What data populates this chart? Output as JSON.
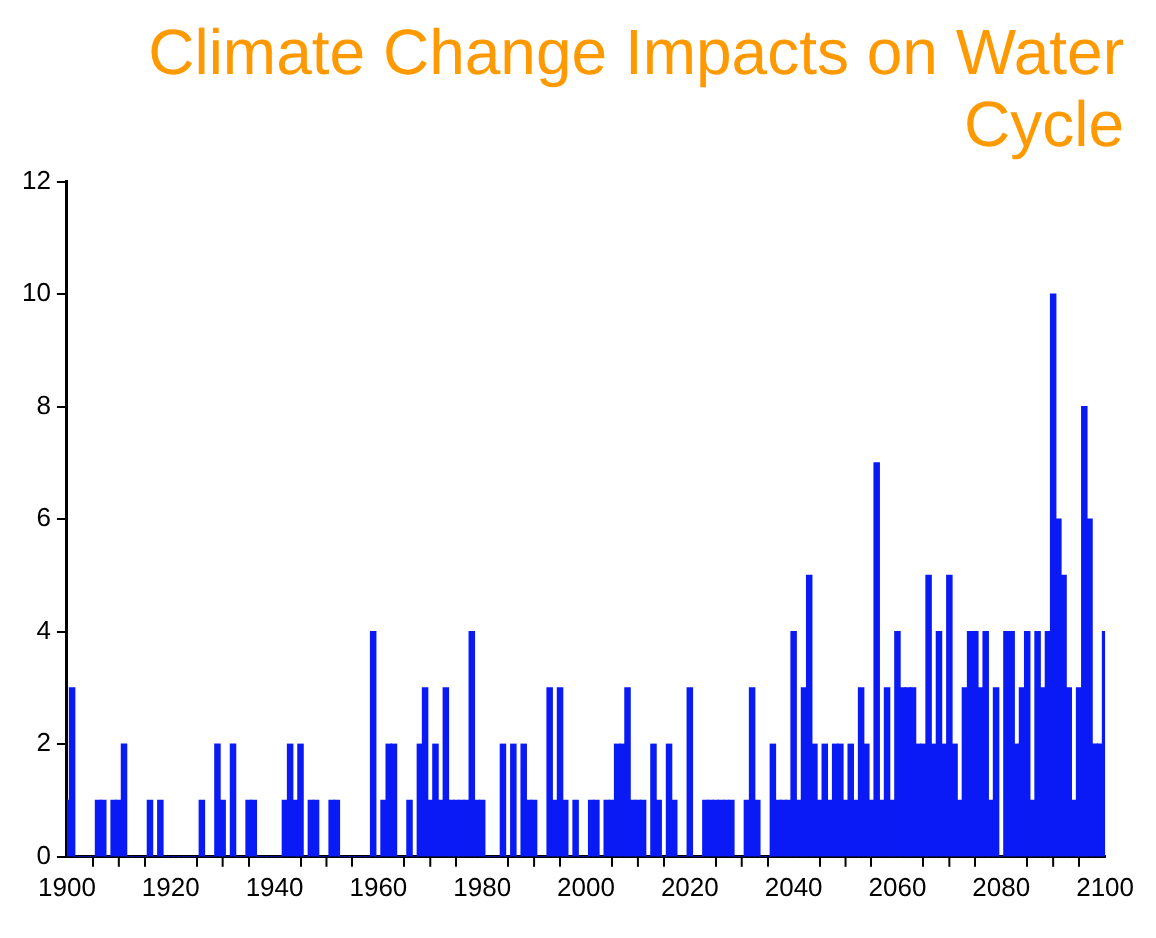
{
  "chart_data": {
    "type": "bar",
    "title": "Climate Change Impacts on Water Cycle",
    "x": [
      1900,
      1901,
      1902,
      1903,
      1904,
      1905,
      1906,
      1907,
      1908,
      1909,
      1910,
      1911,
      1912,
      1913,
      1914,
      1915,
      1916,
      1917,
      1918,
      1919,
      1920,
      1921,
      1922,
      1923,
      1924,
      1925,
      1926,
      1927,
      1928,
      1929,
      1930,
      1931,
      1932,
      1933,
      1934,
      1935,
      1936,
      1937,
      1938,
      1939,
      1940,
      1941,
      1942,
      1943,
      1944,
      1945,
      1946,
      1947,
      1948,
      1949,
      1950,
      1951,
      1952,
      1953,
      1954,
      1955,
      1956,
      1957,
      1958,
      1959,
      1960,
      1961,
      1962,
      1963,
      1964,
      1965,
      1966,
      1967,
      1968,
      1969,
      1970,
      1971,
      1972,
      1973,
      1974,
      1975,
      1976,
      1977,
      1978,
      1979,
      1980,
      1981,
      1982,
      1983,
      1984,
      1985,
      1986,
      1987,
      1988,
      1989,
      1990,
      1991,
      1992,
      1993,
      1994,
      1995,
      1996,
      1997,
      1998,
      1999,
      2000,
      2001,
      2002,
      2003,
      2004,
      2005,
      2006,
      2007,
      2008,
      2009,
      2010,
      2011,
      2012,
      2013,
      2014,
      2015,
      2016,
      2017,
      2018,
      2019,
      2020,
      2021,
      2022,
      2023,
      2024,
      2025,
      2026,
      2027,
      2028,
      2029,
      2030,
      2031,
      2032,
      2033,
      2034,
      2035,
      2036,
      2037,
      2038,
      2039,
      2040,
      2041,
      2042,
      2043,
      2044,
      2045,
      2046,
      2047,
      2048,
      2049,
      2050,
      2051,
      2052,
      2053,
      2054,
      2055,
      2056,
      2057,
      2058,
      2059,
      2060,
      2061,
      2062,
      2063,
      2064,
      2065,
      2066,
      2067,
      2068,
      2069,
      2070,
      2071,
      2072,
      2073,
      2074,
      2075,
      2076,
      2077,
      2078,
      2079,
      2080,
      2081,
      2082,
      2083,
      2084,
      2085,
      2086,
      2087,
      2088,
      2089,
      2090,
      2091,
      2092,
      2093,
      2094,
      2095,
      2096,
      2097,
      2098,
      2099,
      2100
    ],
    "values": [
      1,
      3,
      0,
      0,
      0,
      0,
      1,
      1,
      0,
      1,
      1,
      2,
      0,
      0,
      0,
      0,
      1,
      0,
      1,
      0,
      0,
      0,
      0,
      0,
      0,
      0,
      1,
      0,
      0,
      2,
      1,
      0,
      2,
      0,
      0,
      1,
      1,
      0,
      0,
      0,
      0,
      0,
      1,
      2,
      1,
      2,
      0,
      1,
      1,
      0,
      0,
      1,
      1,
      0,
      0,
      0,
      0,
      0,
      0,
      4,
      0,
      1,
      2,
      2,
      0,
      0,
      1,
      0,
      2,
      3,
      1,
      2,
      1,
      3,
      1,
      1,
      1,
      1,
      4,
      1,
      1,
      0,
      0,
      0,
      2,
      0,
      2,
      0,
      2,
      1,
      1,
      0,
      0,
      3,
      1,
      3,
      1,
      0,
      1,
      0,
      0,
      1,
      1,
      0,
      1,
      1,
      2,
      2,
      3,
      1,
      1,
      1,
      0,
      2,
      1,
      0,
      2,
      1,
      0,
      0,
      3,
      0,
      0,
      1,
      1,
      1,
      1,
      1,
      1,
      0,
      0,
      1,
      3,
      1,
      0,
      0,
      2,
      1,
      1,
      1,
      4,
      1,
      3,
      5,
      2,
      1,
      2,
      1,
      2,
      2,
      1,
      2,
      1,
      3,
      2,
      1,
      7,
      1,
      3,
      1,
      4,
      3,
      3,
      3,
      2,
      2,
      5,
      2,
      4,
      2,
      5,
      2,
      1,
      3,
      4,
      4,
      3,
      4,
      1,
      3,
      0,
      4,
      4,
      2,
      3,
      4,
      1,
      4,
      3,
      4,
      10,
      6,
      5,
      3,
      1,
      3,
      8,
      6,
      2,
      2,
      4
    ],
    "color": "#0a1af5",
    "xlim": [
      1900,
      2100
    ],
    "xticks": [
      1900,
      {
        "value": 1910,
        "label": null
      },
      1920,
      {
        "value": 1930,
        "label": null
      },
      1940,
      {
        "value": 1950,
        "label": null
      },
      1960,
      {
        "value": 1970,
        "label": null
      },
      1980,
      {
        "value": 1990,
        "label": null
      },
      2000,
      {
        "value": 2010,
        "label": null
      },
      2020,
      {
        "value": 2030,
        "label": null
      },
      2040,
      {
        "value": 2050,
        "label": null
      },
      2060,
      {
        "value": 2070,
        "label": null
      },
      2080,
      {
        "value": 2090,
        "label": null
      },
      2100
    ],
    "ylim": [
      0,
      12
    ],
    "yticks": [
      0,
      2,
      4,
      6,
      8,
      10,
      12
    ],
    "grid": false,
    "legend": false
  }
}
